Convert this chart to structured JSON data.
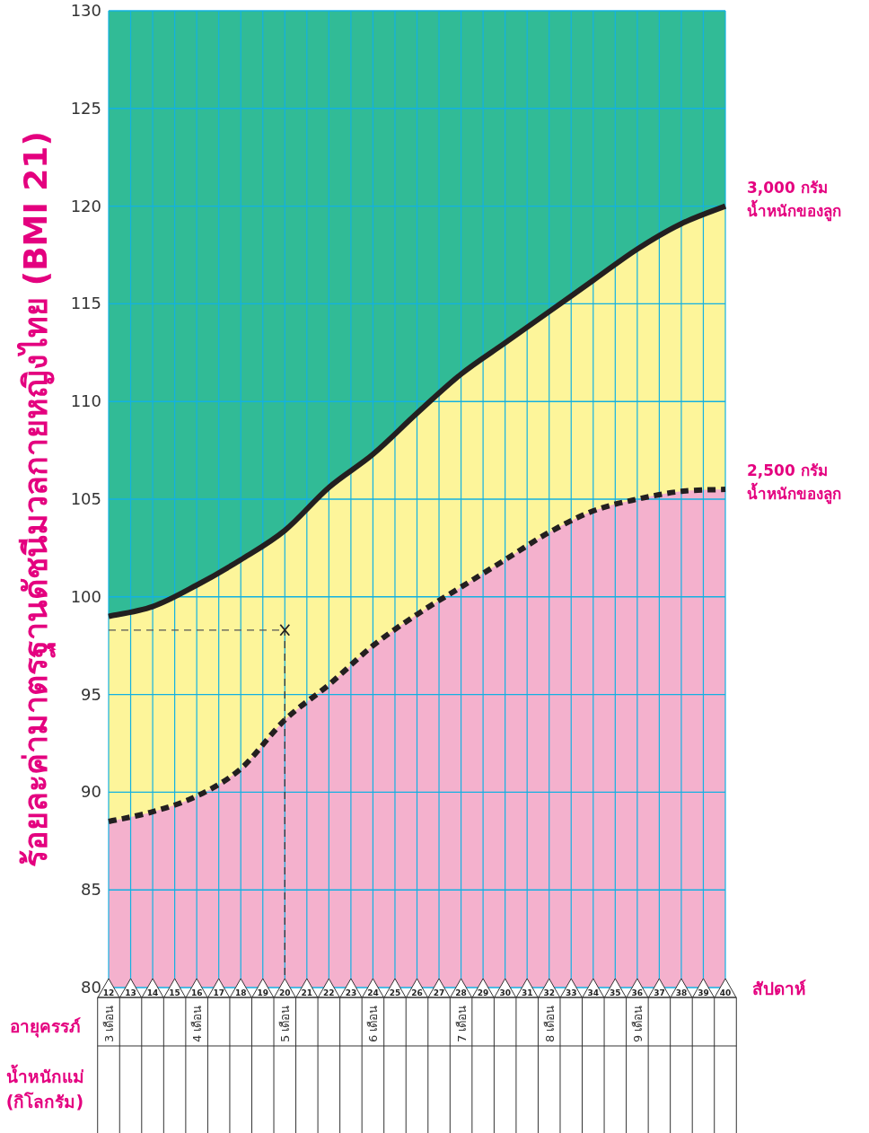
{
  "chart_data": {
    "type": "area",
    "ylabel": "ร้อยละค่ามาตรฐานดัชนีมวลกายหญิงไทย (BMI 21)",
    "xlabel": "สัปดาห์",
    "x": [
      12,
      14,
      16,
      18,
      20,
      22,
      24,
      26,
      28,
      30,
      32,
      34,
      36,
      38,
      40
    ],
    "series": [
      {
        "name": "2,500 กรัม\nน้ำหนักของลูก",
        "color": "#f4b1cd",
        "line_style": "dashed",
        "values": [
          88.5,
          89.0,
          89.8,
          91.2,
          93.7,
          95.5,
          97.5,
          99.1,
          100.5,
          101.9,
          103.3,
          104.4,
          105.0,
          105.4,
          105.5
        ]
      },
      {
        "name": "3,000 กรัม\nน้ำหนักของลูก",
        "color": "#fdf59a",
        "line_style": "solid",
        "values": [
          99.0,
          99.5,
          100.6,
          101.9,
          103.4,
          105.6,
          107.3,
          109.4,
          111.4,
          113.0,
          114.6,
          116.2,
          117.8,
          119.1,
          120.0
        ]
      },
      {
        "type": "scatter",
        "marker": "cross",
        "color": "#231f20",
        "values": [
          null,
          null,
          null,
          null,
          98.3,
          null,
          null,
          null,
          null,
          null,
          null,
          null,
          null,
          null,
          null
        ],
        "xerrors": [
          null,
          null,
          null,
          null,
          [
            12,
            20
          ],
          null,
          null,
          null,
          null,
          null,
          null,
          null,
          null,
          null,
          null
        ],
        "errors": [
          null,
          null,
          null,
          null,
          [
            80,
            98.3
          ],
          null,
          null,
          null,
          null,
          null,
          null,
          null,
          null,
          null,
          null
        ]
      }
    ],
    "xlim": [
      12,
      40
    ],
    "xticks": [
      12,
      13,
      14,
      15,
      16,
      17,
      18,
      19,
      20,
      21,
      22,
      23,
      24,
      25,
      26,
      27,
      28,
      29,
      30,
      31,
      32,
      33,
      34,
      35,
      36,
      37,
      38,
      39,
      40
    ],
    "ylim": [
      80,
      130
    ],
    "yticks": [
      80,
      85,
      90,
      95,
      100,
      105,
      110,
      115,
      120,
      125,
      130
    ],
    "grid": true,
    "annotations": [
      "อายุครรภ์",
      "น้ำหนักแม่\n(กิโลกรัม)",
      "3 เดือน",
      "4 เดือน",
      "5 เดือน",
      "6 เดือน",
      "7 เดือน",
      "8 เดือน",
      "9 เดือน"
    ]
  }
}
